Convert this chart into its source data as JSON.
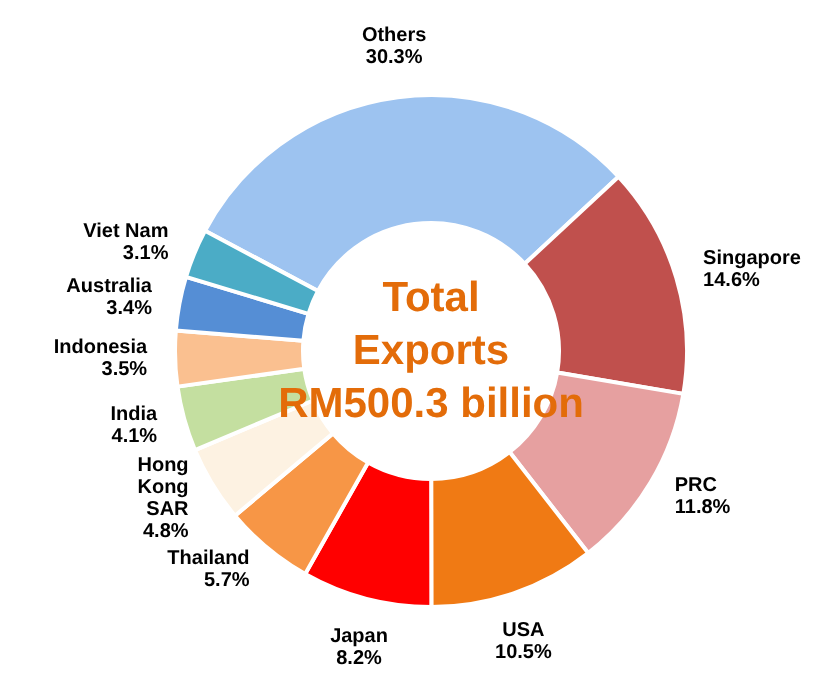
{
  "chart_data": {
    "type": "donut",
    "title": "Total Exports RM500.3 billion",
    "categories": [
      "Others",
      "Singapore",
      "PRC",
      "USA",
      "Japan",
      "Thailand",
      "Hong Kong SAR",
      "India",
      "Indonesia",
      "Australia",
      "Viet Nam"
    ],
    "values": [
      30.3,
      14.6,
      11.8,
      10.5,
      8.2,
      5.7,
      4.8,
      4.1,
      3.5,
      3.4,
      3.1
    ],
    "colors": [
      "#9dc3f0",
      "#c0504d",
      "#e6a0a0",
      "#f07a14",
      "#ff0000",
      "#f79646",
      "#fdf2e2",
      "#c4dfa0",
      "#fac090",
      "#558ed5",
      "#4bacc6"
    ],
    "value_labels": [
      "30.3%",
      "14.6%",
      "11.8%",
      "10.5%",
      "8.2%",
      "5.7%",
      "4.8%",
      "4.1%",
      "3.5%",
      "3.4%",
      "3.1%"
    ]
  }
}
